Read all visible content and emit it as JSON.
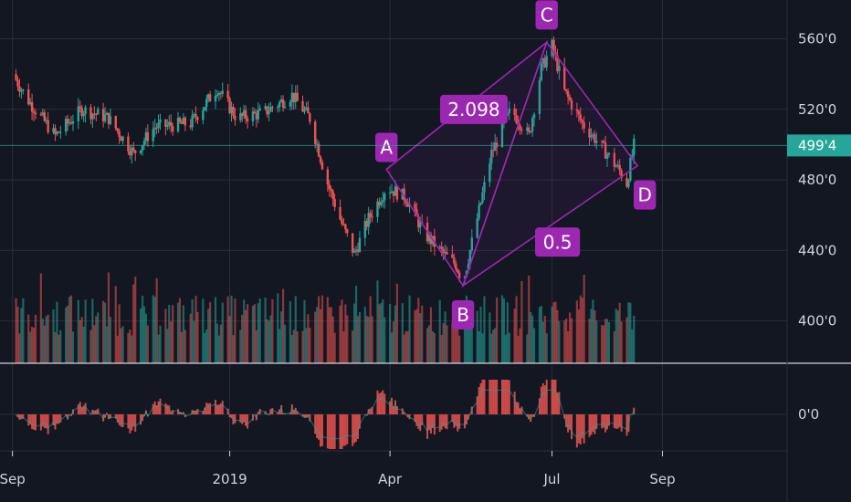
{
  "chart_data": {
    "type": "candlestick",
    "x_ticks": [
      "Sep",
      "2019",
      "Apr",
      "Jul",
      "Sep"
    ],
    "y_ticks": [
      "560'0",
      "520'0",
      "480'0",
      "440'0",
      "400'0"
    ],
    "oscillator_ticks": [
      "0'0"
    ],
    "last_price_label": "499'4",
    "last_price": 499.5,
    "ylim": [
      376,
      582
    ],
    "price_series_trend": [
      {
        "date": "2018-09-01",
        "close": 540
      },
      {
        "date": "2018-09-10",
        "close": 525
      },
      {
        "date": "2018-09-25",
        "close": 505
      },
      {
        "date": "2018-10-10",
        "close": 520
      },
      {
        "date": "2018-10-25",
        "close": 515
      },
      {
        "date": "2018-11-08",
        "close": 495
      },
      {
        "date": "2018-11-20",
        "close": 510
      },
      {
        "date": "2018-12-10",
        "close": 512
      },
      {
        "date": "2018-12-25",
        "close": 532
      },
      {
        "date": "2019-01-05",
        "close": 515
      },
      {
        "date": "2019-01-20",
        "close": 518
      },
      {
        "date": "2019-02-05",
        "close": 528
      },
      {
        "date": "2019-02-15",
        "close": 515
      },
      {
        "date": "2019-02-25",
        "close": 478
      },
      {
        "date": "2019-03-05",
        "close": 455
      },
      {
        "date": "2019-03-12",
        "close": 438
      },
      {
        "date": "2019-03-20",
        "close": 458
      },
      {
        "date": "2019-03-30",
        "close": 476
      },
      {
        "date": "2019-04-10",
        "close": 470
      },
      {
        "date": "2019-04-20",
        "close": 450
      },
      {
        "date": "2019-05-01",
        "close": 438
      },
      {
        "date": "2019-05-08",
        "close": 432
      },
      {
        "date": "2019-05-12",
        "close": 422
      },
      {
        "date": "2019-05-20",
        "close": 458
      },
      {
        "date": "2019-05-28",
        "close": 495
      },
      {
        "date": "2019-06-08",
        "close": 520
      },
      {
        "date": "2019-06-18",
        "close": 505
      },
      {
        "date": "2019-06-25",
        "close": 543
      },
      {
        "date": "2019-07-01",
        "close": 556
      },
      {
        "date": "2019-07-08",
        "close": 530
      },
      {
        "date": "2019-07-18",
        "close": 512
      },
      {
        "date": "2019-07-28",
        "close": 500
      },
      {
        "date": "2019-08-08",
        "close": 485
      },
      {
        "date": "2019-08-12",
        "close": 478
      },
      {
        "date": "2019-08-16",
        "close": 499.5
      }
    ],
    "pattern": {
      "points": [
        {
          "label": "A",
          "date": "2019-03-30",
          "price": 486
        },
        {
          "label": "B",
          "date": "2019-05-12",
          "price": 420
        },
        {
          "label": "C",
          "date": "2019-06-28",
          "price": 558
        },
        {
          "label": "D",
          "date": "2019-08-18",
          "price": 488
        }
      ],
      "ratios": [
        "2.098",
        "0.5"
      ]
    }
  },
  "colors": {
    "background": "#131722",
    "up": "#26a69a",
    "down": "#ef5350",
    "pattern": "#9c27b0",
    "grid": "#2a2e39",
    "axis_text": "#d1d4dc"
  }
}
